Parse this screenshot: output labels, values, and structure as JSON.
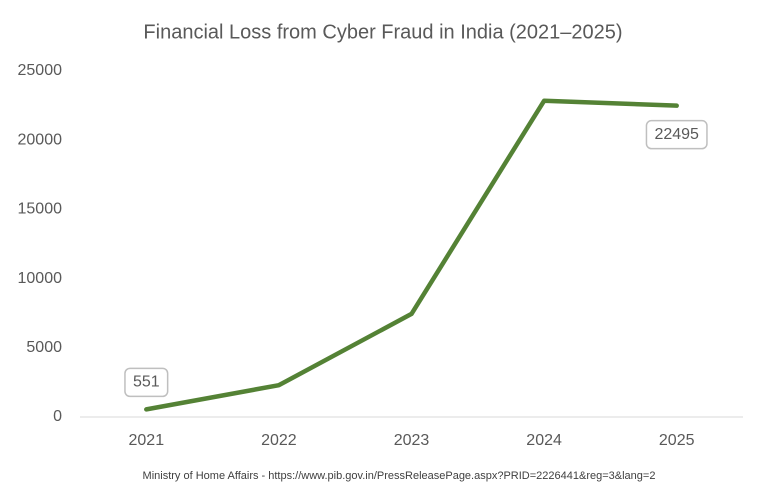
{
  "chart_data": {
    "type": "line",
    "title": "Financial Loss from Cyber Fraud in India (2021–2025)",
    "categories": [
      "2021",
      "2022",
      "2023",
      "2024",
      "2025"
    ],
    "series": [
      {
        "name": "Financial Loss",
        "color": "#548235",
        "values": [
          551,
          2300,
          7450,
          22850,
          22495
        ]
      }
    ],
    "data_labels": [
      true,
      false,
      false,
      false,
      true
    ],
    "ylim": [
      0,
      25000
    ],
    "yticks": [
      0,
      5000,
      10000,
      15000,
      20000,
      25000
    ],
    "grid": false,
    "source": "Ministry of Home Affairs - https://www.pib.gov.in/PressReleasePage.aspx?PRID=2226441&reg=3&lang=2"
  }
}
